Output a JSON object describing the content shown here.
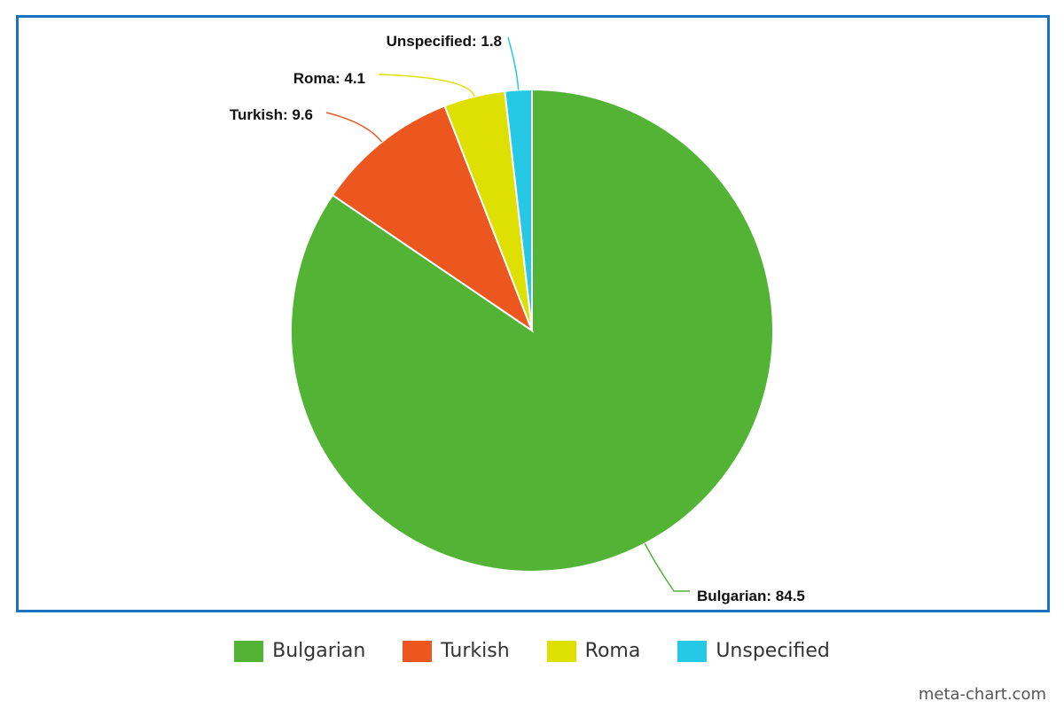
{
  "chart_data": {
    "type": "pie",
    "title": "",
    "slices": [
      {
        "label": "Bulgarian",
        "value": 84.5,
        "color": "#52b335",
        "display": "Bulgarian: 84.5"
      },
      {
        "label": "Turkish",
        "value": 9.6,
        "color": "#ec561f",
        "display": "Turkish: 9.6"
      },
      {
        "label": "Roma",
        "value": 4.1,
        "color": "#dde000",
        "display": "Roma: 4.1"
      },
      {
        "label": "Unspecified",
        "value": 1.8,
        "color": "#25c9e6",
        "display": "Unspecified: 1.8"
      }
    ],
    "start_angle": "top",
    "direction": "clockwise",
    "legend_placement": "bottom-center",
    "border_color": "#1a73c0"
  },
  "legend": {
    "items": [
      {
        "label": "Bulgarian",
        "color": "#52b335"
      },
      {
        "label": "Turkish",
        "color": "#ec561f"
      },
      {
        "label": "Roma",
        "color": "#dde000"
      },
      {
        "label": "Unspecified",
        "color": "#25c9e6"
      }
    ]
  },
  "watermark": "meta-chart.com"
}
